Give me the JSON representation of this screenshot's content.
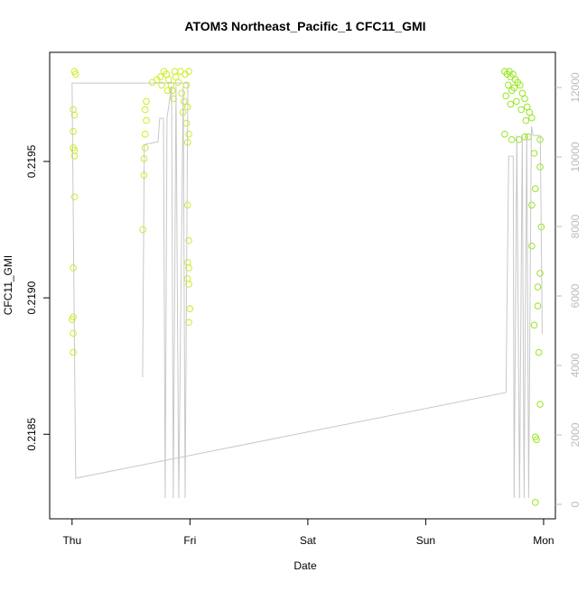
{
  "chart_data": {
    "type": "scatter",
    "title": "ATOM3 Northeast_Pacific_1 CFC11_GMI",
    "x_label": "Date",
    "y_label": "CFC11_GMI",
    "xlim": [
      -0.19,
      4.1
    ],
    "xticks": [
      {
        "value": 0,
        "label": "Thu"
      },
      {
        "value": 1,
        "label": "Fri"
      },
      {
        "value": 2,
        "label": "Sat"
      },
      {
        "value": 3,
        "label": "Sun"
      },
      {
        "value": 4,
        "label": "Mon"
      }
    ],
    "ylim": [
      0.21819,
      0.2199
    ],
    "yticks": [
      0.2185,
      {
        "value": 0.219,
        "label": "0.2190"
      },
      0.2195
    ],
    "y2lim": [
      -416,
      13013
    ],
    "y2ticks": [
      0,
      2000,
      4000,
      6000,
      8000,
      10000,
      12000
    ],
    "series": [
      {
        "color": "#ccee22",
        "x": [
          0.02,
          0.03,
          0.01,
          0.02,
          0.01,
          0.01,
          0.02,
          0.02,
          0.02,
          0.01,
          0.01,
          0.0,
          0.01,
          0.01,
          0.6,
          0.61,
          0.61,
          0.62,
          0.62,
          0.63,
          0.62,
          0.63,
          0.68,
          0.72,
          0.75,
          0.78,
          0.8,
          0.82,
          0.84,
          0.85,
          0.87,
          0.88,
          0.9,
          0.92,
          0.93,
          0.95,
          0.96,
          0.97,
          0.98,
          0.99,
          0.76,
          0.81,
          0.86,
          0.94,
          0.98,
          0.99,
          0.98,
          0.99,
          0.98,
          0.99,
          1.0,
          0.99,
          0.97,
          0.98,
          0.99
        ],
        "values": [
          0.21983,
          0.21982,
          0.21969,
          0.21967,
          0.21961,
          0.21955,
          0.21954,
          0.21952,
          0.21937,
          0.21911,
          0.21893,
          0.21892,
          0.21887,
          0.2188,
          0.21925,
          0.21945,
          0.21951,
          0.21955,
          0.2196,
          0.21965,
          0.21969,
          0.21972,
          0.21979,
          0.2198,
          0.21981,
          0.21983,
          0.21982,
          0.2198,
          0.21978,
          0.21976,
          0.21983,
          0.21981,
          0.21979,
          0.21983,
          0.21975,
          0.21972,
          0.21982,
          0.21978,
          0.2197,
          0.21983,
          0.21978,
          0.21976,
          0.21973,
          0.21968,
          0.21934,
          0.21921,
          0.21913,
          0.21911,
          0.21907,
          0.21905,
          0.21896,
          0.21891,
          0.21964,
          0.21957,
          0.2196
        ]
      },
      {
        "color": "#99e622",
        "x": [
          3.67,
          3.69,
          3.71,
          3.72,
          3.74,
          3.76,
          3.78,
          3.7,
          3.73,
          3.75,
          3.8,
          3.82,
          3.84,
          3.86,
          3.88,
          3.9,
          3.68,
          3.72,
          3.77,
          3.81,
          3.85,
          3.67,
          3.73,
          3.79,
          3.84,
          3.87,
          3.97,
          3.92,
          3.97,
          3.93,
          3.9,
          3.98,
          3.9,
          3.97,
          3.95,
          3.95,
          3.92,
          3.96,
          3.97,
          3.93,
          3.94,
          3.93
        ],
        "values": [
          0.21983,
          0.21982,
          0.21983,
          0.21981,
          0.21982,
          0.2198,
          0.21979,
          0.21978,
          0.21976,
          0.21977,
          0.21978,
          0.21975,
          0.21973,
          0.2197,
          0.21968,
          0.21966,
          0.21974,
          0.21971,
          0.21972,
          0.21969,
          0.21965,
          0.2196,
          0.21958,
          0.21958,
          0.21959,
          0.21959,
          0.21958,
          0.21953,
          0.21948,
          0.2194,
          0.21934,
          0.21926,
          0.21919,
          0.21909,
          0.21904,
          0.21897,
          0.2189,
          0.2188,
          0.21861,
          0.21849,
          0.21848,
          0.21825
        ]
      },
      {
        "type": "line",
        "axis": "y2",
        "color": "#c8c8c8",
        "x": [
          0.598,
          0.613,
          0.729,
          0.744,
          0.775,
          0.79,
          0.805,
          0.844,
          0.859,
          0.882,
          0.905,
          0.943,
          0.959,
          0.982,
          0,
          0.031,
          3.681,
          3.704,
          3.742,
          3.75,
          3.773,
          3.796,
          3.819,
          3.834,
          3.857,
          3.873,
          3.896,
          3.911,
          3.972,
          3.988
        ],
        "values": [
          3662,
          10362,
          10440,
          11115,
          11115,
          182,
          11115,
          12050,
          182,
          12050,
          182,
          12050,
          182,
          12128,
          12128,
          753,
          3220,
          10024,
          10024,
          182,
          10622,
          182,
          10622,
          182,
          10622,
          182,
          10881,
          10622,
          10622,
          4908
        ]
      }
    ]
  }
}
